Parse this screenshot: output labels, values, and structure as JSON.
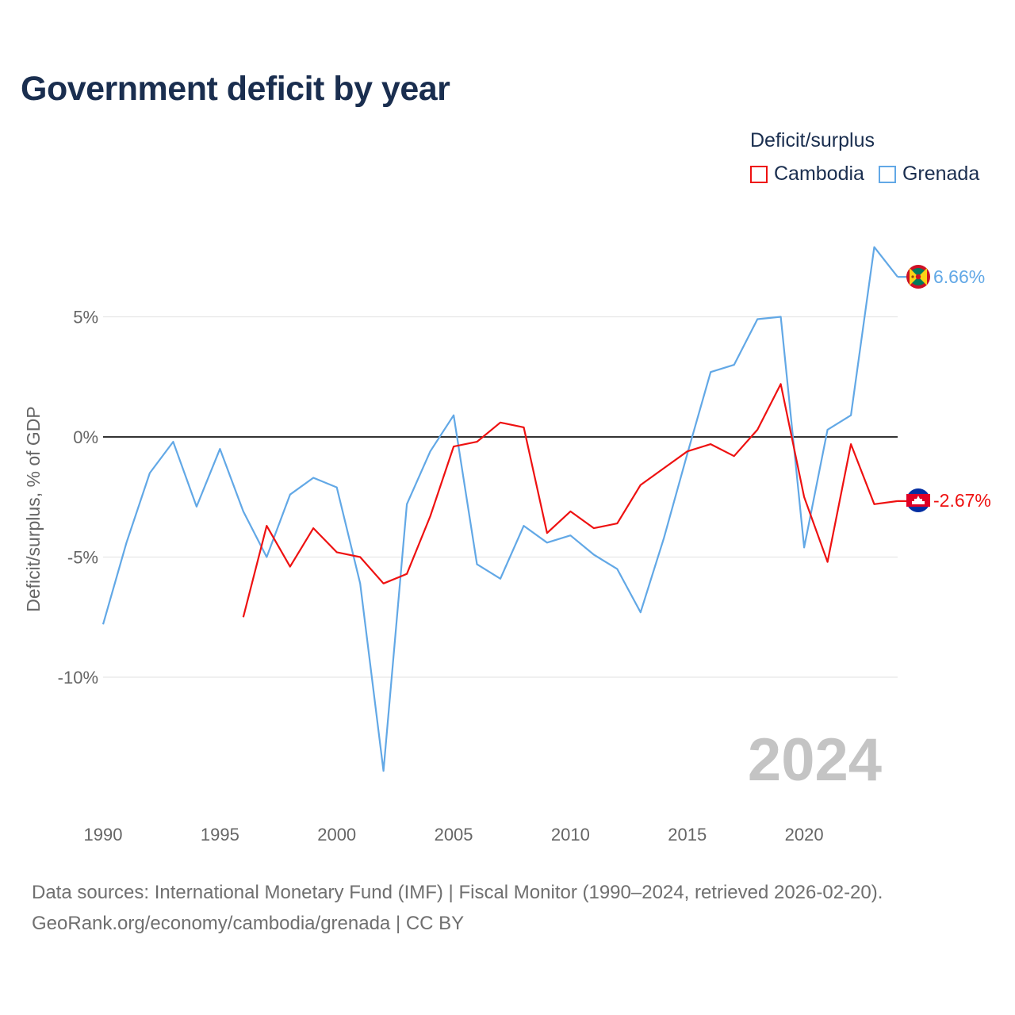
{
  "title": "Government deficit by year",
  "legend": {
    "title": "Deficit/surplus",
    "items": [
      {
        "name": "Cambodia",
        "color": "#ee1111"
      },
      {
        "name": "Grenada",
        "color": "#62a8e6"
      }
    ]
  },
  "source": {
    "line1": "Data sources: International Monetary Fund (IMF) | Fiscal Monitor (1990–2024, retrieved 2026-02-20).",
    "line2": "GeoRank.org/economy/cambodia/grenada | CC BY"
  },
  "chart_data": {
    "type": "line",
    "title": "Government deficit by year",
    "xlabel": "",
    "ylabel": "Deficit/surplus, % of GDP",
    "xlim": [
      1990,
      2024
    ],
    "ylim": [
      -14.5,
      9
    ],
    "x_ticks": [
      1990,
      1995,
      2000,
      2005,
      2010,
      2015,
      2020
    ],
    "y_ticks": [
      5,
      0,
      -5,
      -10
    ],
    "y_tick_labels": [
      "5%",
      "0%",
      "-5%",
      "-10%"
    ],
    "year_label": "2024",
    "series": [
      {
        "name": "Grenada",
        "color": "#62a8e6",
        "end_label": "6.66%",
        "points": [
          [
            1990,
            -7.8
          ],
          [
            1991,
            -4.4
          ],
          [
            1992,
            -1.5
          ],
          [
            1993,
            -0.2
          ],
          [
            1994,
            -2.9
          ],
          [
            1995,
            -0.5
          ],
          [
            1996,
            -3.1
          ],
          [
            1997,
            -5.0
          ],
          [
            1998,
            -2.4
          ],
          [
            1999,
            -1.7
          ],
          [
            2000,
            -2.1
          ],
          [
            2001,
            -6.1
          ],
          [
            2002,
            -13.9
          ],
          [
            2003,
            -2.8
          ],
          [
            2004,
            -0.6
          ],
          [
            2005,
            0.9
          ],
          [
            2006,
            -5.3
          ],
          [
            2007,
            -5.9
          ],
          [
            2008,
            -3.7
          ],
          [
            2009,
            -4.4
          ],
          [
            2010,
            -4.1
          ],
          [
            2011,
            -4.9
          ],
          [
            2012,
            -5.5
          ],
          [
            2013,
            -7.3
          ],
          [
            2014,
            -4.2
          ],
          [
            2015,
            -0.7
          ],
          [
            2016,
            2.7
          ],
          [
            2017,
            3.0
          ],
          [
            2018,
            4.9
          ],
          [
            2019,
            5.0
          ],
          [
            2020,
            -4.6
          ],
          [
            2021,
            0.3
          ],
          [
            2022,
            0.9
          ],
          [
            2023,
            7.9
          ],
          [
            2024,
            6.66
          ]
        ]
      },
      {
        "name": "Cambodia",
        "color": "#ee1111",
        "end_label": "-2.67%",
        "points": [
          [
            1996,
            -7.5
          ],
          [
            1997,
            -3.7
          ],
          [
            1998,
            -5.4
          ],
          [
            1999,
            -3.8
          ],
          [
            2000,
            -4.8
          ],
          [
            2001,
            -5.0
          ],
          [
            2002,
            -6.1
          ],
          [
            2003,
            -5.7
          ],
          [
            2004,
            -3.3
          ],
          [
            2005,
            -0.4
          ],
          [
            2006,
            -0.2
          ],
          [
            2007,
            0.6
          ],
          [
            2008,
            0.4
          ],
          [
            2009,
            -4.0
          ],
          [
            2010,
            -3.1
          ],
          [
            2011,
            -3.8
          ],
          [
            2012,
            -3.6
          ],
          [
            2013,
            -2.0
          ],
          [
            2014,
            -1.3
          ],
          [
            2015,
            -0.6
          ],
          [
            2016,
            -0.3
          ],
          [
            2017,
            -0.8
          ],
          [
            2018,
            0.3
          ],
          [
            2019,
            2.2
          ],
          [
            2020,
            -2.5
          ],
          [
            2021,
            -5.2
          ],
          [
            2022,
            -0.3
          ],
          [
            2023,
            -2.8
          ],
          [
            2024,
            -2.67
          ]
        ]
      }
    ]
  }
}
